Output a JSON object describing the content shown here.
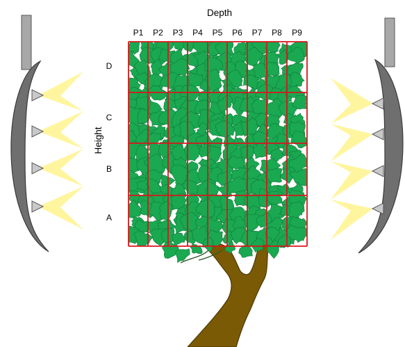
{
  "diagram": {
    "depth_label": "Depth",
    "height_label": "Height",
    "columns": [
      "P1",
      "P2",
      "P3",
      "P4",
      "P5",
      "P6",
      "P7",
      "P8",
      "P9"
    ],
    "rows": [
      "D",
      "C",
      "B",
      "A"
    ],
    "colors": {
      "grid": "#d9161c",
      "foliage": "#1aa851",
      "foliage_edge": "#0f7a38",
      "trunk": "#7a5a04",
      "trunk_edge": "#4d3802",
      "light": "#fff59a",
      "reflector": "#6f6f6f",
      "reflector_edge": "#3a3a3a",
      "lamp": "#c9c9c9",
      "pole": "#a8a8a8"
    },
    "icons": {
      "left_lamp": "grow-light-icon",
      "right_lamp": "grow-light-icon",
      "tree": "tree-canopy-icon"
    }
  }
}
